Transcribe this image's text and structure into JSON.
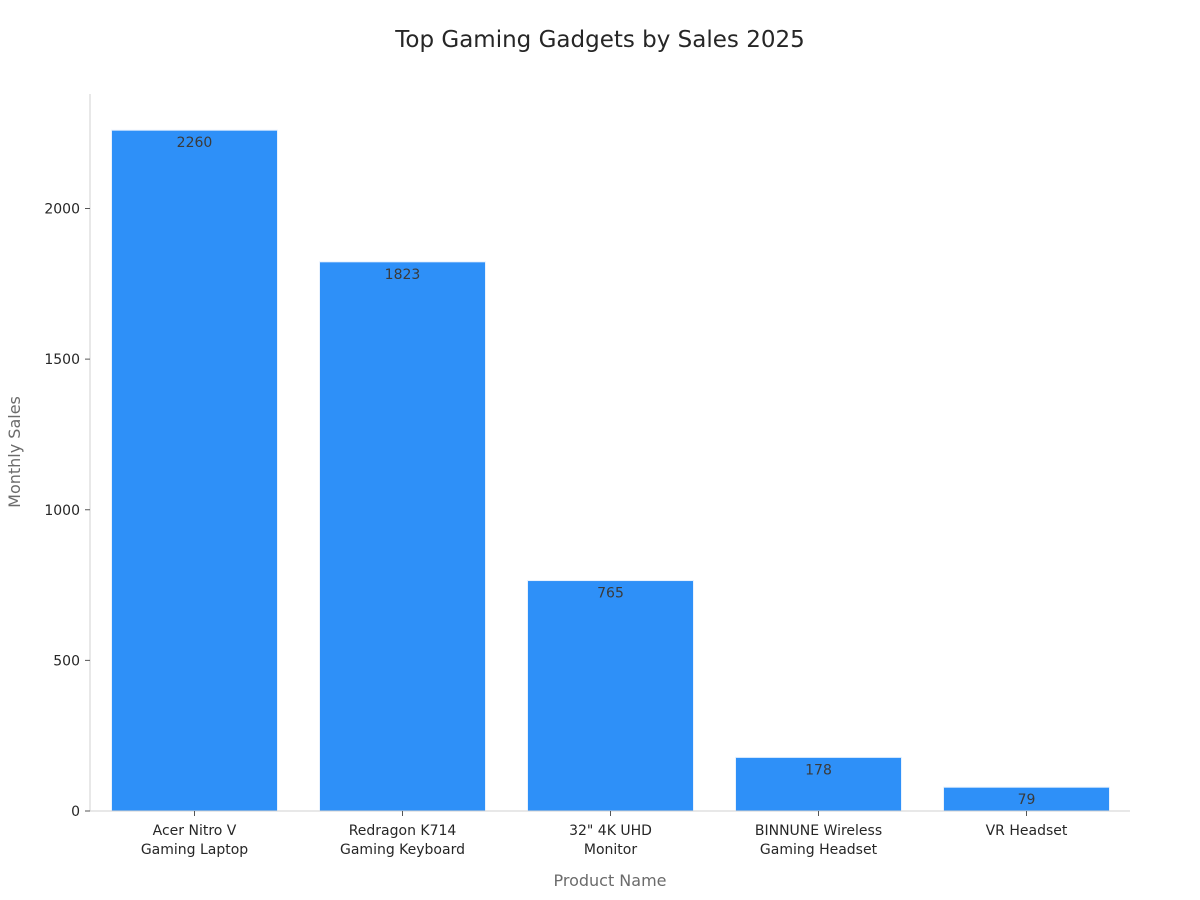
{
  "chart_data": {
    "type": "bar",
    "title": "Top Gaming Gadgets by Sales 2025",
    "xlabel": "Product Name",
    "ylabel": "Monthly Sales",
    "categories": [
      [
        "Acer Nitro V",
        "Gaming Laptop"
      ],
      [
        "Redragon K714",
        "Gaming Keyboard"
      ],
      [
        "32\" 4K UHD",
        "Monitor"
      ],
      [
        "BINNUNE Wireless",
        "Gaming Headset"
      ],
      [
        "VR Headset"
      ]
    ],
    "values": [
      2260,
      1823,
      765,
      178,
      79
    ],
    "value_labels": [
      "2260",
      "1823",
      "765",
      "178",
      "79"
    ],
    "yticks": [
      0,
      500,
      1000,
      1500,
      2000
    ],
    "ylim": [
      0,
      2400
    ],
    "grid": false,
    "bar_color": "#2e90f8"
  }
}
